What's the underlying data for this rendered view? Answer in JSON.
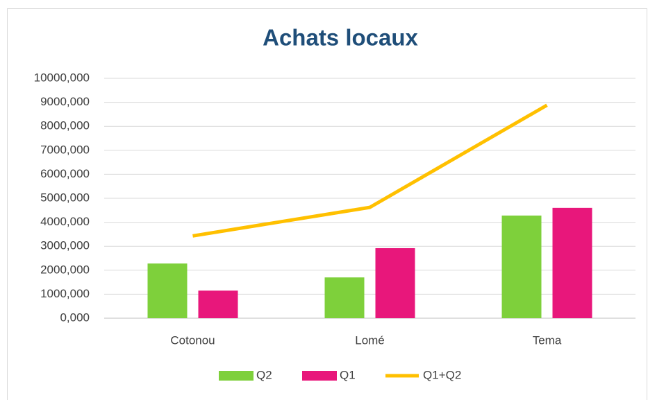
{
  "chart_data": {
    "type": "bar",
    "title": "Achats locaux",
    "categories": [
      "Cotonou",
      "Lomé",
      "Tema"
    ],
    "series": [
      {
        "name": "Q2",
        "type": "bar",
        "color": "#7ed03b",
        "values": [
          2280,
          1700,
          4280
        ]
      },
      {
        "name": "Q1",
        "type": "bar",
        "color": "#e8177b",
        "values": [
          1150,
          2920,
          4600
        ]
      },
      {
        "name": "Q1+Q2",
        "type": "line",
        "color": "#ffc000",
        "values": [
          3430,
          4620,
          8880
        ]
      }
    ],
    "ylim": [
      0,
      10000
    ],
    "yticks": [
      {
        "value": 0,
        "label": "0,000"
      },
      {
        "value": 1000,
        "label": "1000,000"
      },
      {
        "value": 2000,
        "label": "2000,000"
      },
      {
        "value": 3000,
        "label": "3000,000"
      },
      {
        "value": 4000,
        "label": "4000,000"
      },
      {
        "value": 5000,
        "label": "5000,000"
      },
      {
        "value": 6000,
        "label": "6000,000"
      },
      {
        "value": 7000,
        "label": "7000,000"
      },
      {
        "value": 8000,
        "label": "8000,000"
      },
      {
        "value": 9000,
        "label": "9000,000"
      },
      {
        "value": 10000,
        "label": "10000,000"
      }
    ],
    "grid": true,
    "legend": "bottom"
  }
}
